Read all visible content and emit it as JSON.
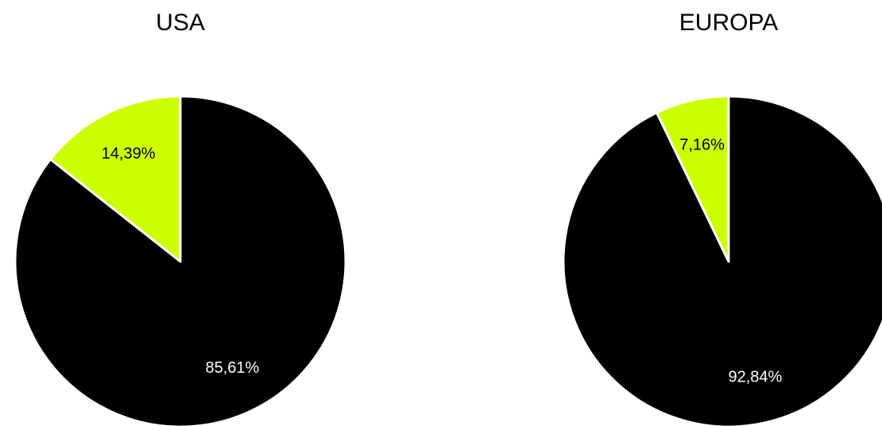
{
  "chart_data": [
    {
      "type": "pie",
      "title": "USA",
      "values": [
        85.61,
        14.39
      ],
      "value_labels": [
        "85,61%",
        "14,39%"
      ],
      "colors": [
        "#000000",
        "#ccff00"
      ]
    },
    {
      "type": "pie",
      "title": "EUROPA",
      "values": [
        92.84,
        7.16
      ],
      "value_labels": [
        "92,84%",
        "7,16%"
      ],
      "colors": [
        "#000000",
        "#ccff00"
      ]
    }
  ]
}
